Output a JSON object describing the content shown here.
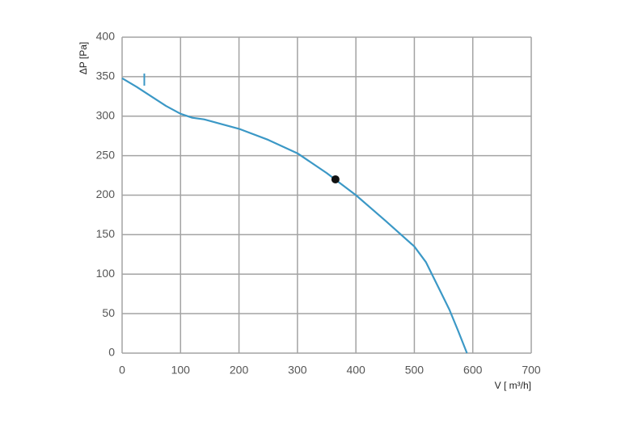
{
  "chart_data": {
    "type": "line",
    "ylabel": "ΔP [Pa]",
    "xlabel": "V [ m³/h]",
    "xlim": [
      0,
      700
    ],
    "xticks": [
      0,
      100,
      200,
      300,
      400,
      500,
      600,
      700
    ],
    "ylim": [
      0,
      400
    ],
    "yticks": [
      0,
      50,
      100,
      150,
      200,
      250,
      300,
      350,
      400
    ],
    "grid": true,
    "series": [
      {
        "color": "#3b98c6",
        "x": [
          0,
          25,
          50,
          75,
          100,
          120,
          140,
          170,
          200,
          250,
          300,
          350,
          400,
          450,
          500,
          520,
          540,
          560,
          575,
          590
        ],
        "values": [
          348,
          337,
          325,
          313,
          303,
          298,
          296,
          290,
          284,
          270,
          253,
          228,
          200,
          168,
          135,
          115,
          85,
          55,
          28,
          0
        ]
      }
    ],
    "marker_x": 38,
    "operating_point": {
      "x": 365,
      "y": 220,
      "color": "#111111"
    }
  }
}
